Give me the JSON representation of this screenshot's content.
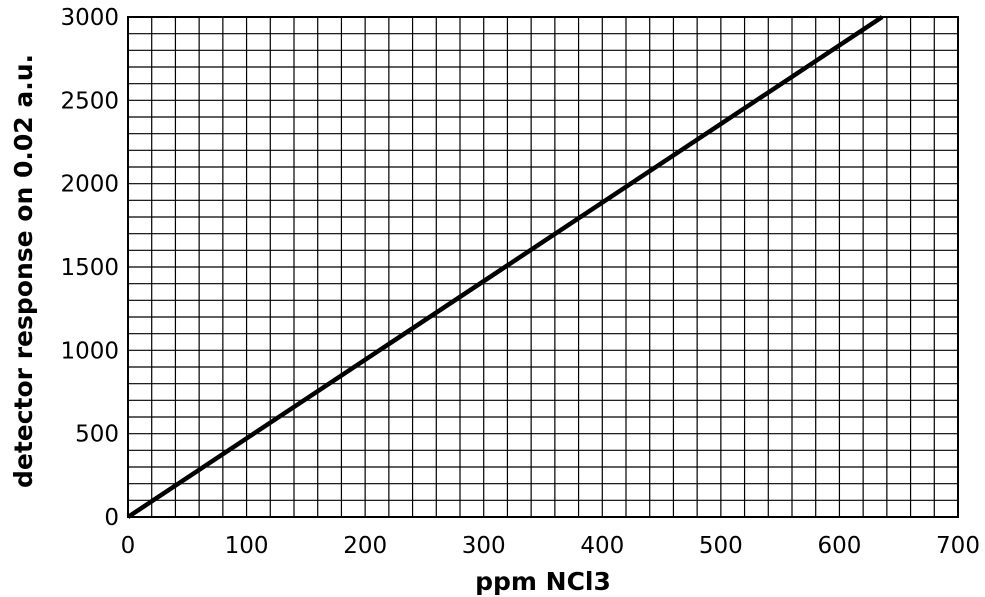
{
  "chart_data": {
    "type": "line",
    "title": "",
    "xlabel": "ppm NCl3",
    "ylabel": "detector response on 0.02 a.u.",
    "xlim": [
      0,
      700
    ],
    "ylim": [
      0,
      3000
    ],
    "x_ticks": [
      0,
      100,
      200,
      300,
      400,
      500,
      600,
      700
    ],
    "y_ticks": [
      0,
      500,
      1000,
      1500,
      2000,
      2500,
      3000
    ],
    "x_tick_labels": [
      "0",
      "100",
      "200",
      "300",
      "400",
      "500",
      "600",
      "700"
    ],
    "y_tick_labels": [
      "0",
      "500",
      "1000",
      "1500",
      "2000",
      "2500",
      "3000"
    ],
    "x_minor_step": 20,
    "y_minor_step": 100,
    "grid": true,
    "series": [
      {
        "x": [
          0,
          636
        ],
        "y": [
          0,
          3000
        ],
        "color": "#000000"
      }
    ]
  }
}
